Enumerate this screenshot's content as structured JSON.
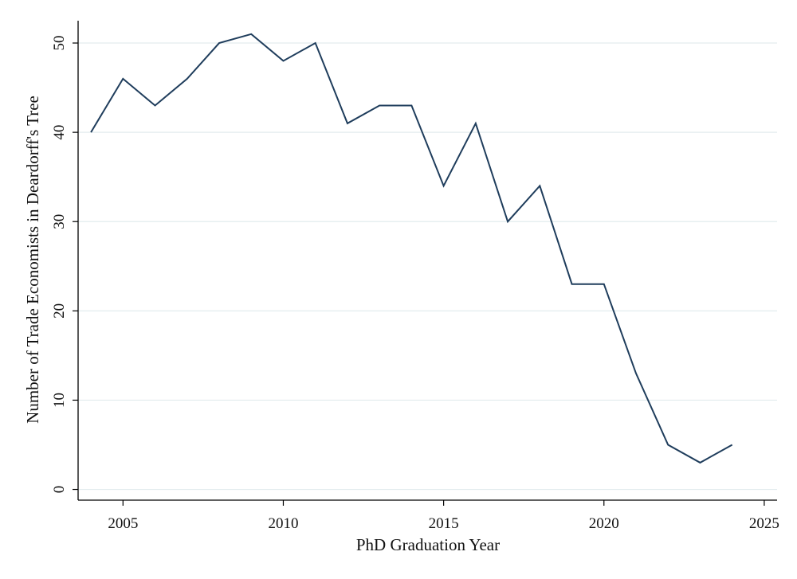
{
  "chart_data": {
    "type": "line",
    "title": "",
    "xlabel": "PhD Graduation Year",
    "ylabel": "Number of Trade Economists in Deardorff's Tree",
    "xlim": [
      2003.6,
      2025.4
    ],
    "ylim": [
      -1.2,
      52.5
    ],
    "x_ticks": [
      2005,
      2010,
      2015,
      2020,
      2025
    ],
    "y_ticks": [
      0,
      10,
      20,
      30,
      40,
      50
    ],
    "grid": true,
    "series": [
      {
        "x": [
          2004,
          2005,
          2006,
          2007,
          2008,
          2009,
          2010,
          2011,
          2012,
          2013,
          2014,
          2015,
          2016,
          2017,
          2018,
          2019,
          2020,
          2021,
          2022,
          2023,
          2024
        ],
        "values": [
          40,
          46,
          43,
          46,
          50,
          51,
          48,
          50,
          41,
          43,
          43,
          34,
          41,
          30,
          34,
          23,
          23,
          13,
          5,
          3,
          5
        ]
      }
    ],
    "colors": {
      "line": "#1f3d5c",
      "grid": "#e3ecee",
      "axis": "#000000"
    }
  }
}
